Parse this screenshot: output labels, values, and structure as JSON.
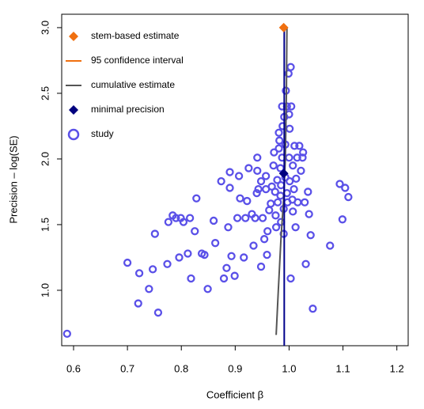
{
  "chart_data": {
    "type": "scatter",
    "xlabel": "Coefficient β",
    "ylabel": "Precision – log(SE)",
    "xlim": [
      0.578,
      1.221
    ],
    "ylim": [
      0.578,
      3.102
    ],
    "xticks": [
      0.6,
      0.7,
      0.8,
      0.9,
      {
        "value": 1,
        "label": "1.0"
      },
      1.1,
      1.2
    ],
    "yticks": [
      {
        "value": 1,
        "label": "1.0"
      },
      1.5,
      {
        "value": 2,
        "label": "2.0"
      },
      2.5,
      {
        "value": 3,
        "label": "3.0"
      }
    ],
    "legend": "topleft",
    "series": [
      {
        "name": "stem-based estimate",
        "kind": "diamond",
        "color": "#f07010",
        "x": [
          0.99
        ],
        "y": [
          3.0
        ]
      },
      {
        "name": "95 confidence interval",
        "kind": "line",
        "color": "#f07010",
        "x": [
          0.987,
          0.993
        ],
        "y": [
          3.0,
          3.0
        ]
      },
      {
        "name": "cumulative estimate",
        "kind": "line",
        "color": "#555555",
        "x": [
          0.976,
          0.98,
          0.985,
          0.99,
          0.993,
          0.995,
          0.996
        ],
        "y": [
          0.66,
          1.0,
          1.4,
          1.7,
          2.0,
          2.5,
          3.0
        ]
      },
      {
        "kind": "line",
        "color": "#00008b",
        "x": [
          0.991,
          0.991
        ],
        "y": [
          0.578,
          3.0
        ]
      },
      {
        "name": "minimal precision",
        "kind": "diamond",
        "color": "#00007f",
        "x": [
          0.99
        ],
        "y": [
          1.89
        ]
      },
      {
        "name": "study",
        "kind": "circle",
        "color": "#5a50e8",
        "x": [
          0.588,
          0.7,
          0.722,
          0.72,
          0.74,
          0.747,
          0.751,
          0.757,
          0.774,
          0.776,
          0.784,
          0.79,
          0.796,
          0.799,
          0.804,
          0.812,
          0.818,
          0.816,
          0.825,
          0.828,
          0.838,
          0.843,
          0.849,
          0.86,
          0.863,
          0.874,
          0.879,
          0.884,
          0.887,
          0.89,
          0.893,
          0.89,
          0.899,
          0.904,
          0.907,
          0.909,
          0.916,
          0.919,
          0.922,
          0.925,
          0.931,
          0.934,
          0.937,
          0.94,
          0.943,
          0.941,
          0.941,
          0.948,
          0.948,
          0.951,
          0.954,
          0.957,
          0.957,
          0.959,
          0.96,
          0.963,
          0.966,
          0.968,
          0.971,
          0.972,
          0.974,
          0.975,
          0.976,
          0.978,
          0.979,
          0.981,
          0.981,
          0.982,
          0.984,
          0.984,
          0.985,
          0.985,
          0.987,
          0.987,
          0.988,
          0.99,
          0.99,
          0.991,
          0.993,
          0.993,
          0.994,
          0.996,
          0.996,
          0.997,
          0.999,
          1.0,
          1.0,
          1.001,
          1.001,
          1.003,
          1.003,
          1.004,
          1.006,
          1.007,
          1.007,
          1.009,
          1.01,
          1.012,
          1.013,
          1.015,
          1.016,
          1.019,
          1.022,
          1.025,
          1.026,
          1.029,
          1.031,
          1.035,
          1.037,
          1.04,
          1.044,
          1.076,
          1.094,
          1.099,
          1.104,
          1.11
        ],
        "y": [
          0.669,
          1.21,
          1.13,
          0.9,
          1.01,
          1.16,
          1.43,
          0.83,
          1.2,
          1.52,
          1.57,
          1.55,
          1.25,
          1.55,
          1.52,
          1.28,
          1.09,
          1.55,
          1.45,
          1.7,
          1.28,
          1.27,
          1.01,
          1.53,
          1.36,
          1.83,
          1.09,
          1.17,
          1.48,
          1.78,
          1.26,
          1.9,
          1.11,
          1.55,
          1.87,
          1.7,
          1.25,
          1.55,
          1.68,
          1.93,
          1.58,
          1.34,
          1.55,
          1.74,
          1.77,
          1.91,
          2.01,
          1.83,
          1.18,
          1.55,
          1.39,
          1.77,
          1.87,
          1.27,
          1.45,
          1.61,
          1.66,
          1.79,
          1.95,
          2.05,
          1.75,
          1.57,
          1.48,
          1.84,
          1.67,
          2.08,
          2.2,
          2.14,
          1.93,
          1.72,
          1.52,
          1.8,
          2.4,
          2.01,
          2.25,
          1.62,
          1.43,
          2.32,
          2.11,
          1.86,
          2.52,
          2.4,
          1.74,
          1.67,
          2.65,
          2.34,
          2.01,
          2.23,
          1.83,
          2.7,
          1.09,
          2.4,
          1.69,
          1.95,
          1.6,
          1.77,
          2.1,
          1.48,
          1.85,
          2.01,
          1.67,
          2.1,
          1.91,
          2.01,
          2.05,
          1.67,
          1.2,
          1.75,
          1.58,
          1.42,
          0.86,
          1.34,
          1.81,
          1.54,
          1.78,
          1.71
        ]
      }
    ]
  }
}
